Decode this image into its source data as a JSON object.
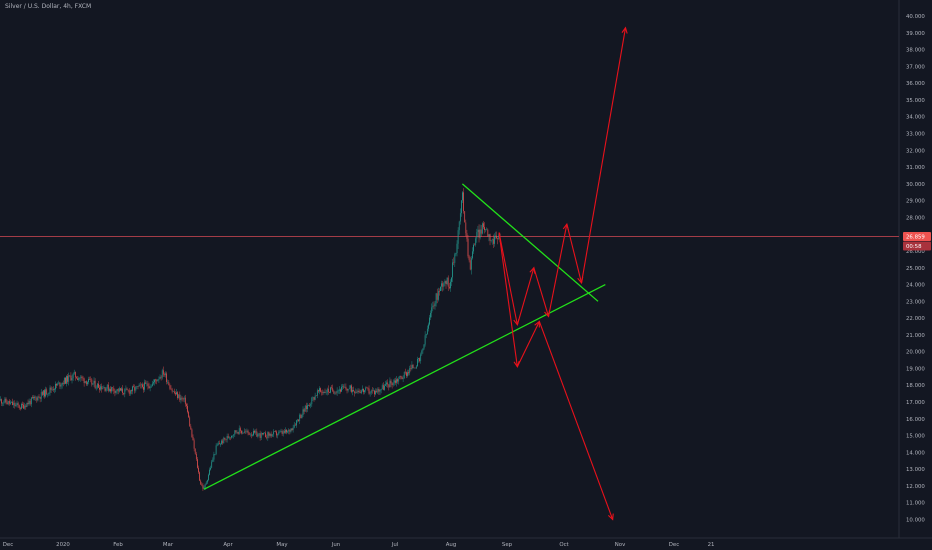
{
  "header": {
    "title": "Silver / U.S. Dollar, 4h, FXCM"
  },
  "price_tags": {
    "last": "26.859",
    "second": "00:58"
  },
  "colors": {
    "background": "#131722",
    "up": "#26a69a",
    "down": "#ef5350",
    "trendline": "#22e01a",
    "projection": "#e8111b",
    "price_line": "#b8424d",
    "axis_text": "#b2b5be"
  },
  "chart_data": {
    "type": "candlestick",
    "title": "Silver / U.S. Dollar, 4h, FXCM",
    "ylim": [
      9.5,
      40.4
    ],
    "y_ticks": [
      "10.000",
      "11.000",
      "12.000",
      "13.000",
      "14.000",
      "15.000",
      "16.000",
      "17.000",
      "18.000",
      "19.000",
      "20.000",
      "21.000",
      "22.000",
      "23.000",
      "24.000",
      "25.000",
      "26.000",
      "27.000",
      "28.000",
      "29.000",
      "30.000",
      "31.000",
      "32.000",
      "33.000",
      "34.000",
      "35.000",
      "36.000",
      "37.000",
      "38.000",
      "39.000",
      "40.000"
    ],
    "x_ticks": [
      "Dec",
      "2020",
      "Feb",
      "Mar",
      "Apr",
      "May",
      "Jun",
      "Jul",
      "Aug",
      "Sep",
      "Oct",
      "Nov",
      "Dec",
      "21"
    ],
    "last_price": 26.859,
    "price_path": [
      {
        "date": "2019-11-29",
        "price": 17.1
      },
      {
        "date": "2019-12-10",
        "price": 16.7
      },
      {
        "date": "2019-12-24",
        "price": 17.6
      },
      {
        "date": "2020-01-08",
        "price": 18.6
      },
      {
        "date": "2020-01-20",
        "price": 18.0
      },
      {
        "date": "2020-02-05",
        "price": 17.6
      },
      {
        "date": "2020-02-20",
        "price": 18.1
      },
      {
        "date": "2020-02-26",
        "price": 18.8
      },
      {
        "date": "2020-03-02",
        "price": 17.6
      },
      {
        "date": "2020-03-09",
        "price": 17.0
      },
      {
        "date": "2020-03-13",
        "price": 14.6
      },
      {
        "date": "2020-03-17",
        "price": 12.2
      },
      {
        "date": "2020-03-19",
        "price": 11.8
      },
      {
        "date": "2020-03-26",
        "price": 14.4
      },
      {
        "date": "2020-04-06",
        "price": 15.3
      },
      {
        "date": "2020-04-20",
        "price": 15.0
      },
      {
        "date": "2020-05-04",
        "price": 15.2
      },
      {
        "date": "2020-05-20",
        "price": 17.6
      },
      {
        "date": "2020-06-05",
        "price": 17.8
      },
      {
        "date": "2020-06-20",
        "price": 17.6
      },
      {
        "date": "2020-07-05",
        "price": 18.5
      },
      {
        "date": "2020-07-15",
        "price": 19.5
      },
      {
        "date": "2020-07-22",
        "price": 22.8
      },
      {
        "date": "2020-07-28",
        "price": 24.3
      },
      {
        "date": "2020-07-31",
        "price": 24.0
      },
      {
        "date": "2020-08-04",
        "price": 26.5
      },
      {
        "date": "2020-08-07",
        "price": 29.3
      },
      {
        "date": "2020-08-11",
        "price": 25.0
      },
      {
        "date": "2020-08-14",
        "price": 26.8
      },
      {
        "date": "2020-08-19",
        "price": 27.5
      },
      {
        "date": "2020-08-24",
        "price": 26.5
      },
      {
        "date": "2020-08-28",
        "price": 27.0
      }
    ],
    "trendlines": [
      {
        "name": "support",
        "from": {
          "date": "2020-03-19",
          "price": 11.8
        },
        "to": {
          "date": "2020-10-24",
          "price": 24.0
        }
      },
      {
        "name": "resistance",
        "from": {
          "date": "2020-08-07",
          "price": 30.0
        },
        "to": {
          "date": "2020-10-20",
          "price": 23.0
        }
      }
    ],
    "projections": [
      {
        "name": "path-high",
        "points": [
          {
            "date": "2020-08-27",
            "price": 27.1
          },
          {
            "date": "2020-09-06",
            "price": 21.6
          },
          {
            "date": "2020-09-15",
            "price": 25.0
          },
          {
            "date": "2020-09-23",
            "price": 22.1
          },
          {
            "date": "2020-10-03",
            "price": 27.6
          },
          {
            "date": "2020-10-11",
            "price": 24.1
          },
          {
            "date": "2020-11-04",
            "price": 39.3
          }
        ]
      },
      {
        "name": "path-low",
        "points": [
          {
            "date": "2020-08-27",
            "price": 27.1
          },
          {
            "date": "2020-09-06",
            "price": 19.1
          },
          {
            "date": "2020-09-18",
            "price": 21.8
          },
          {
            "date": "2020-10-28",
            "price": 10.0
          }
        ]
      }
    ]
  }
}
